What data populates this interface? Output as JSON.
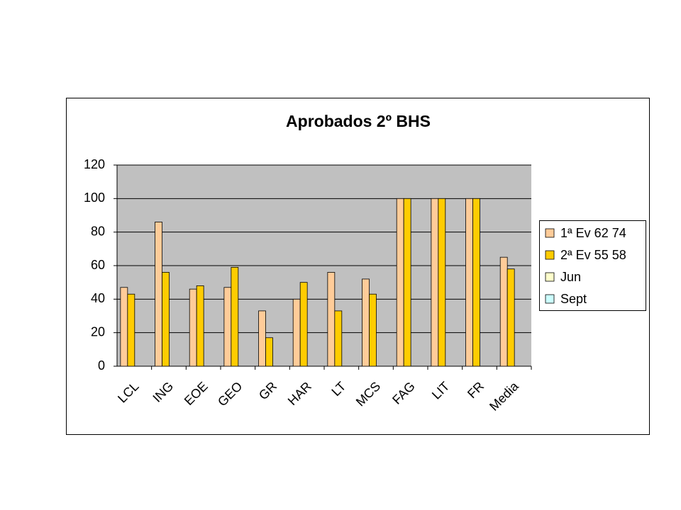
{
  "chart_data": {
    "type": "bar",
    "title": "Aprobados 2º BHS",
    "categories": [
      "LCL",
      "ING",
      "EOE",
      "GEO",
      "GR",
      "HAR",
      "LT",
      "MCS",
      "FAG",
      "LIT",
      "FR",
      "Media"
    ],
    "series": [
      {
        "name": "1ª Ev 62 74",
        "color": "#ffcc99",
        "values": [
          47,
          86,
          46,
          47,
          33,
          40,
          56,
          52,
          100,
          100,
          100,
          65
        ]
      },
      {
        "name": "2ª Ev 55 58",
        "color": "#ffcc00",
        "values": [
          43,
          56,
          48,
          59,
          17,
          50,
          33,
          43,
          100,
          100,
          100,
          58
        ]
      },
      {
        "name": "Jun",
        "color": "#ffffcc",
        "values": [
          null,
          null,
          null,
          null,
          null,
          null,
          null,
          null,
          null,
          null,
          null,
          null
        ]
      },
      {
        "name": "Sept",
        "color": "#ccffff",
        "values": [
          null,
          null,
          null,
          null,
          null,
          null,
          null,
          null,
          null,
          null,
          null,
          null
        ]
      }
    ],
    "ylim": [
      0,
      120
    ],
    "yticks": [
      0,
      20,
      40,
      60,
      80,
      100,
      120
    ],
    "grid": true,
    "legend": "right"
  }
}
